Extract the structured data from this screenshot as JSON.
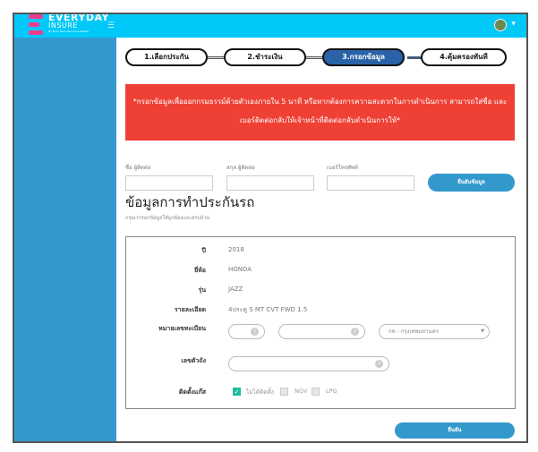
{
  "brand": {
    "name": "EVERYDAY",
    "sub": "INSURE",
    "tagline": "By Euro Thai Insurance Broker"
  },
  "steps": [
    {
      "label": "1.เลือกประกัน",
      "active": false
    },
    {
      "label": "2.ชำระเงิน",
      "active": false
    },
    {
      "label": "3.กรอกข้อมูล",
      "active": true
    },
    {
      "label": "4.คุ้มครองทันที",
      "active": false
    }
  ],
  "alert": {
    "text": "*กรอกข้อมูลเพื่อออกกรมธรรม์ด้วยตัวเองภายใน 5 นาที หรือหากต้องการความสะดวกในการดำเนินการ สามารถใส่ชื่อ และเบอร์ติดต่อกลับให้เจ้าหน้าที่ติดต่อกลับดำเนินการให้*",
    "color": "#ee4035"
  },
  "contact": {
    "first_name_label": "ชื่อ ผู้ติดต่อ",
    "last_name_label": "สกุล ผู้ติดต่อ",
    "phone_label": "เบอร์โทรศัพท์",
    "first_name": "",
    "last_name": "",
    "phone": "",
    "confirm_label": "ยืนยันข้อมูล"
  },
  "section": {
    "title": "ข้อมูลการทำประกันรถ",
    "subtitle": "กรุณากรอกข้อมูลให้ถูกต้องและครบถ้วน"
  },
  "car": {
    "year_label": "ปี",
    "year": "2018",
    "brand_label": "ยี่ห้อ",
    "brand": "HONDA",
    "model_label": "รุ่น",
    "model": "JAZZ",
    "detail_label": "รายละเอียด",
    "detail": "4ประตู S MT CVT FWD 1.5",
    "plate_label": "หมายเลขทะเบียน",
    "plate_prefix": "",
    "plate_number": "",
    "province": "กท - กรุงเทพมหานคร",
    "chassis_label": "เลขตัวถัง",
    "chassis": "",
    "gas_label": "ติดตั้งแก๊ส",
    "gas_options": [
      {
        "label": "ไม่ได้ติดตั้ง",
        "checked": true
      },
      {
        "label": "NGV",
        "checked": false
      },
      {
        "label": "LPG",
        "checked": false
      }
    ]
  },
  "submit_label": "ยืนยัน",
  "colors": {
    "header": "#00c8f8",
    "sidebar": "#3399cc",
    "accent": "#2a62a8",
    "button": "#3399cc"
  }
}
